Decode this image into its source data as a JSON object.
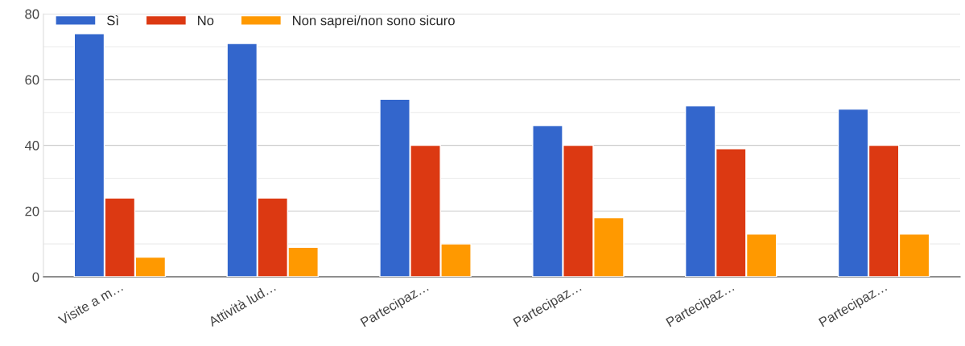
{
  "chart_data": {
    "type": "bar",
    "categories": [
      "Visite a m…",
      "Attività lud…",
      "Partecipaz…",
      "Partecipaz…",
      "Partecipaz…",
      "Partecipaz…"
    ],
    "series": [
      {
        "name": "Sì",
        "color": "#3366cc",
        "values": [
          74,
          71,
          54,
          46,
          52,
          51
        ]
      },
      {
        "name": "No",
        "color": "#dc3912",
        "values": [
          24,
          24,
          40,
          40,
          39,
          40
        ]
      },
      {
        "name": "Non saprei/non sono sicuro",
        "color": "#ff9900",
        "values": [
          6,
          9,
          10,
          18,
          13,
          13
        ]
      }
    ],
    "ylim": [
      0,
      80
    ],
    "yticks": [
      0,
      {
        "value": 10,
        "label": null
      },
      20,
      {
        "value": 30,
        "label": null
      },
      40,
      {
        "value": 50,
        "label": null
      },
      60,
      {
        "value": 70,
        "label": null
      },
      80
    ],
    "grid": "y",
    "legend": "top left"
  }
}
